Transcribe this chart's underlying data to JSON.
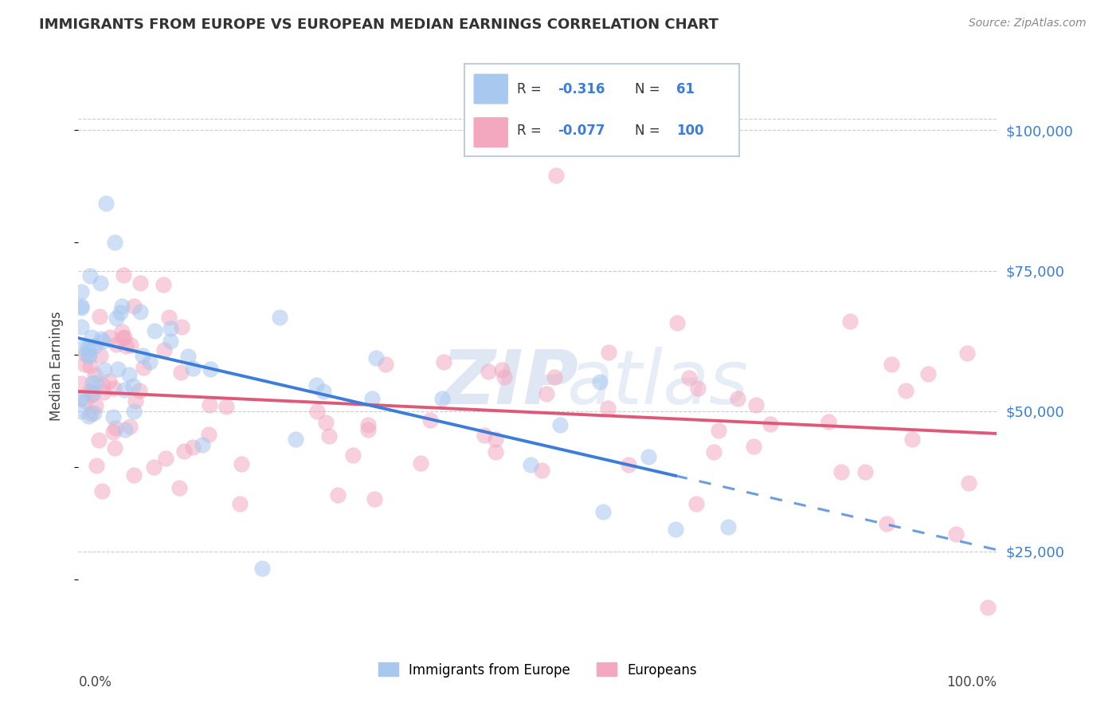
{
  "title": "IMMIGRANTS FROM EUROPE VS EUROPEAN MEDIAN EARNINGS CORRELATION CHART",
  "source": "Source: ZipAtlas.com",
  "ylabel": "Median Earnings",
  "yticks": [
    25000,
    50000,
    75000,
    100000
  ],
  "ytick_labels": [
    "$25,000",
    "$50,000",
    "$75,000",
    "$100,000"
  ],
  "ymin": 8000,
  "ymax": 108000,
  "xmin": 0.0,
  "xmax": 100.0,
  "blue_color": "#A8C8F0",
  "pink_color": "#F4A8C0",
  "blue_line_color": "#3B7DD8",
  "pink_line_color": "#E05878",
  "blue_r": "-0.316",
  "blue_n": "61",
  "pink_r": "-0.077",
  "pink_n": "100",
  "background_color": "#ffffff",
  "grid_color": "#cccccc",
  "blue_trend_x0": 0.0,
  "blue_trend_y0": 63000,
  "blue_trend_x1": 65.0,
  "blue_trend_y1": 38500,
  "blue_dash_x0": 65.0,
  "blue_dash_x1": 100.0,
  "pink_trend_x0": 0.0,
  "pink_trend_y0": 53500,
  "pink_trend_x1": 100.0,
  "pink_trend_y1": 46000,
  "scatter_marker_size": 200,
  "scatter_alpha": 0.55
}
